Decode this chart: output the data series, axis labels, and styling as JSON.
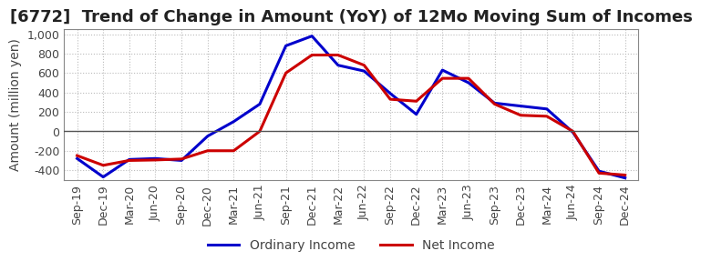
{
  "title": "[6772]  Trend of Change in Amount (YoY) of 12Mo Moving Sum of Incomes",
  "ylabel": "Amount (million yen)",
  "x_labels": [
    "Sep-19",
    "Dec-19",
    "Mar-20",
    "Jun-20",
    "Sep-20",
    "Dec-20",
    "Mar-21",
    "Jun-21",
    "Sep-21",
    "Dec-21",
    "Mar-22",
    "Jun-22",
    "Sep-22",
    "Dec-22",
    "Mar-23",
    "Jun-23",
    "Sep-23",
    "Dec-23",
    "Mar-24",
    "Jun-24",
    "Sep-24",
    "Dec-24"
  ],
  "ordinary_income": [
    -280,
    -470,
    -290,
    -280,
    -300,
    -50,
    100,
    280,
    880,
    980,
    680,
    620,
    390,
    175,
    630,
    500,
    290,
    260,
    230,
    -10,
    -410,
    -480
  ],
  "net_income": [
    -250,
    -350,
    -300,
    -295,
    -285,
    -200,
    -200,
    0,
    600,
    785,
    785,
    680,
    330,
    310,
    545,
    545,
    280,
    165,
    155,
    0,
    -430,
    -450
  ],
  "ordinary_income_color": "#0000cc",
  "net_income_color": "#cc0000",
  "ylim": [
    -500,
    1050
  ],
  "yticks": [
    -400,
    -200,
    0,
    200,
    400,
    600,
    800,
    1000
  ],
  "grid_color": "#bbbbbb",
  "background_color": "#ffffff",
  "title_fontsize": 13,
  "axis_fontsize": 10,
  "tick_fontsize": 9,
  "legend_fontsize": 10,
  "line_width": 2.2
}
